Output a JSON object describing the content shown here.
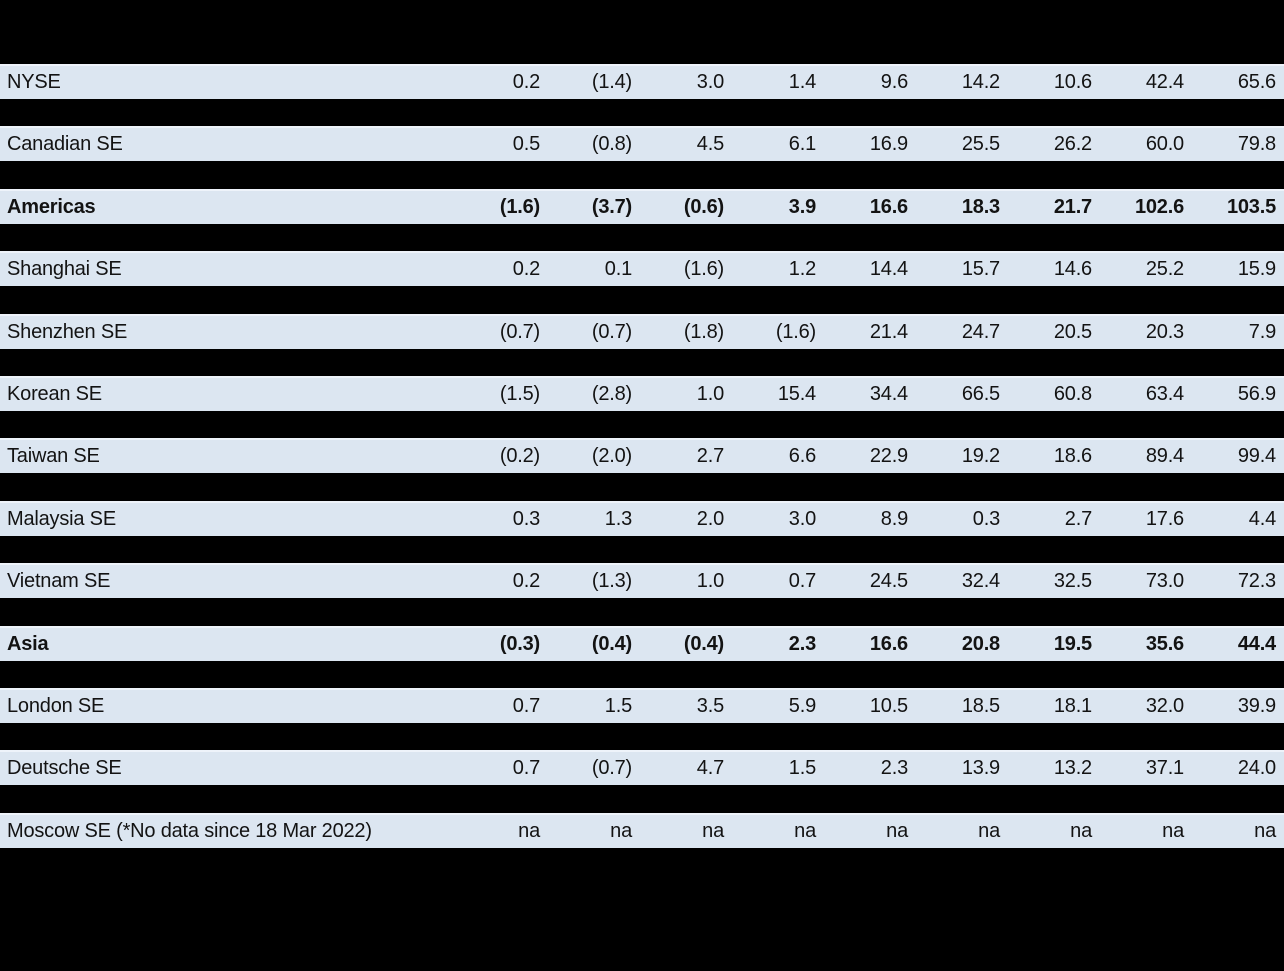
{
  "colors": {
    "page_bg": "#000000",
    "row_bg": "#dce6f1",
    "row_top_edge": "#eef3fa",
    "text": "#131313"
  },
  "table": {
    "description": "Stock exchange performance table on black background; header area not visible",
    "rows": [
      {
        "label": "NYSE",
        "bold": false,
        "values": [
          "0.2",
          "(1.4)",
          "3.0",
          "1.4",
          "9.6",
          "14.2",
          "10.6",
          "42.4",
          "65.6"
        ]
      },
      {
        "label": "Canadian SE",
        "bold": false,
        "values": [
          "0.5",
          "(0.8)",
          "4.5",
          "6.1",
          "16.9",
          "25.5",
          "26.2",
          "60.0",
          "79.8"
        ]
      },
      {
        "label": "Americas",
        "bold": true,
        "values": [
          "(1.6)",
          "(3.7)",
          "(0.6)",
          "3.9",
          "16.6",
          "18.3",
          "21.7",
          "102.6",
          "103.5"
        ]
      },
      {
        "label": "Shanghai SE",
        "bold": false,
        "values": [
          "0.2",
          "0.1",
          "(1.6)",
          "1.2",
          "14.4",
          "15.7",
          "14.6",
          "25.2",
          "15.9"
        ]
      },
      {
        "label": "Shenzhen SE",
        "bold": false,
        "values": [
          "(0.7)",
          "(0.7)",
          "(1.8)",
          "(1.6)",
          "21.4",
          "24.7",
          "20.5",
          "20.3",
          "7.9"
        ]
      },
      {
        "label": "Korean SE",
        "bold": false,
        "values": [
          "(1.5)",
          "(2.8)",
          "1.0",
          "15.4",
          "34.4",
          "66.5",
          "60.8",
          "63.4",
          "56.9"
        ]
      },
      {
        "label": "Taiwan SE",
        "bold": false,
        "values": [
          "(0.2)",
          "(2.0)",
          "2.7",
          "6.6",
          "22.9",
          "19.2",
          "18.6",
          "89.4",
          "99.4"
        ]
      },
      {
        "label": "Malaysia SE",
        "bold": false,
        "values": [
          "0.3",
          "1.3",
          "2.0",
          "3.0",
          "8.9",
          "0.3",
          "2.7",
          "17.6",
          "4.4"
        ]
      },
      {
        "label": "Vietnam SE",
        "bold": false,
        "values": [
          "0.2",
          "(1.3)",
          "1.0",
          "0.7",
          "24.5",
          "32.4",
          "32.5",
          "73.0",
          "72.3"
        ]
      },
      {
        "label": "Asia",
        "bold": true,
        "values": [
          "(0.3)",
          "(0.4)",
          "(0.4)",
          "2.3",
          "16.6",
          "20.8",
          "19.5",
          "35.6",
          "44.4"
        ]
      },
      {
        "label": "London SE",
        "bold": false,
        "values": [
          "0.7",
          "1.5",
          "3.5",
          "5.9",
          "10.5",
          "18.5",
          "18.1",
          "32.0",
          "39.9"
        ]
      },
      {
        "label": "Deutsche SE",
        "bold": false,
        "values": [
          "0.7",
          "(0.7)",
          "4.7",
          "1.5",
          "2.3",
          "13.9",
          "13.2",
          "37.1",
          "24.0"
        ]
      },
      {
        "label": "Moscow SE (*No data since 18 Mar 2022)",
        "bold": false,
        "values": [
          "na",
          "na",
          "na",
          "na",
          "na",
          "na",
          "na",
          "na",
          "na"
        ]
      }
    ]
  },
  "chart_data": {
    "type": "table",
    "title": "",
    "note": "Parentheses denote negative values; 'na' = not available; column headers hidden (black-on-black area above table)",
    "categories": [
      "NYSE",
      "Canadian SE",
      "Americas",
      "Shanghai SE",
      "Shenzhen SE",
      "Korean SE",
      "Taiwan SE",
      "Malaysia SE",
      "Vietnam SE",
      "Asia",
      "London SE",
      "Deutsche SE",
      "Moscow SE (*No data since 18 Mar 2022)"
    ],
    "rows_numeric": [
      [
        0.2,
        -1.4,
        3.0,
        1.4,
        9.6,
        14.2,
        10.6,
        42.4,
        65.6
      ],
      [
        0.5,
        -0.8,
        4.5,
        6.1,
        16.9,
        25.5,
        26.2,
        60.0,
        79.8
      ],
      [
        -1.6,
        -3.7,
        -0.6,
        3.9,
        16.6,
        18.3,
        21.7,
        102.6,
        103.5
      ],
      [
        0.2,
        0.1,
        -1.6,
        1.2,
        14.4,
        15.7,
        14.6,
        25.2,
        15.9
      ],
      [
        -0.7,
        -0.7,
        -1.8,
        -1.6,
        21.4,
        24.7,
        20.5,
        20.3,
        7.9
      ],
      [
        -1.5,
        -2.8,
        1.0,
        15.4,
        34.4,
        66.5,
        60.8,
        63.4,
        56.9
      ],
      [
        -0.2,
        -2.0,
        2.7,
        6.6,
        22.9,
        19.2,
        18.6,
        89.4,
        99.4
      ],
      [
        0.3,
        1.3,
        2.0,
        3.0,
        8.9,
        0.3,
        2.7,
        17.6,
        4.4
      ],
      [
        0.2,
        -1.3,
        1.0,
        0.7,
        24.5,
        32.4,
        32.5,
        73.0,
        72.3
      ],
      [
        -0.3,
        -0.4,
        -0.4,
        2.3,
        16.6,
        20.8,
        19.5,
        35.6,
        44.4
      ],
      [
        0.7,
        1.5,
        3.5,
        5.9,
        10.5,
        18.5,
        18.1,
        32.0,
        39.9
      ],
      [
        0.7,
        -0.7,
        4.7,
        1.5,
        2.3,
        13.9,
        13.2,
        37.1,
        24.0
      ],
      [
        "na",
        "na",
        "na",
        "na",
        "na",
        "na",
        "na",
        "na",
        "na"
      ]
    ],
    "summary_rows": [
      "Americas",
      "Asia"
    ]
  }
}
